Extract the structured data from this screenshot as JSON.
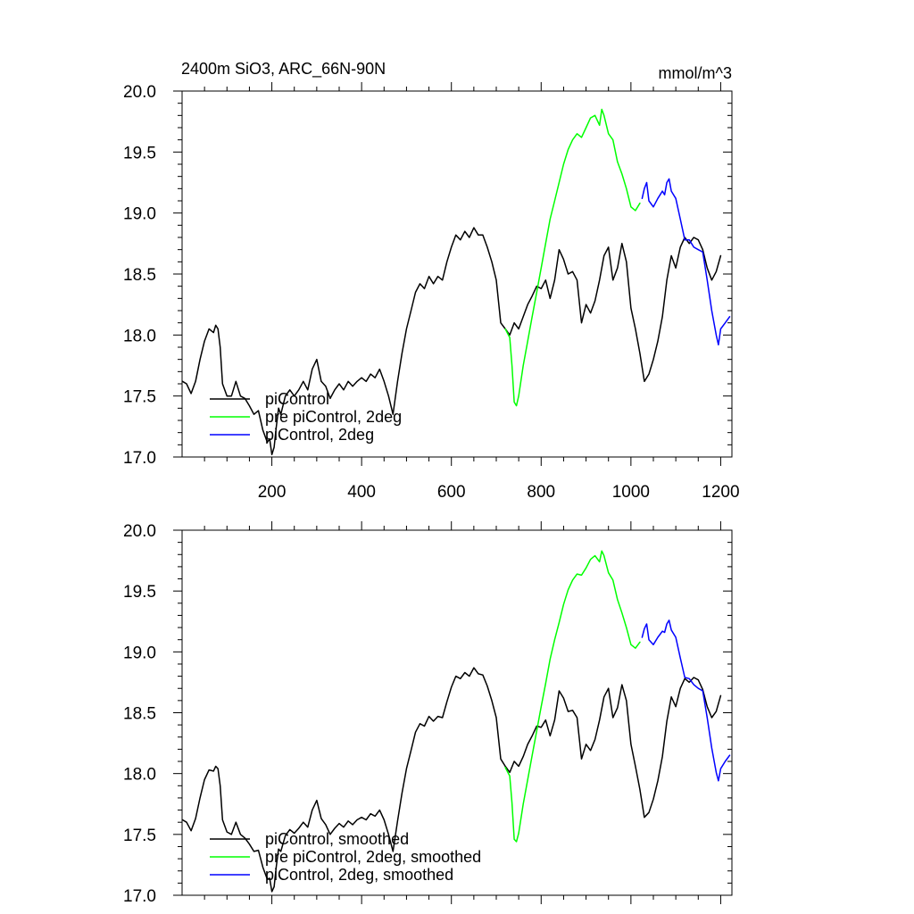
{
  "figure": {
    "title_left": "2400m SiO3, ARC_66N-90N",
    "title_right": "mmol/m^3"
  },
  "chart_data": [
    {
      "type": "line",
      "title": "2400m SiO3, ARC_66N-90N",
      "units": "mmol/m^3",
      "xlim": [
        0,
        1225
      ],
      "ylim": [
        17.0,
        20.0
      ],
      "xticks": [
        200,
        400,
        600,
        800,
        1000,
        1200
      ],
      "xtick_labels": [
        "200",
        "400",
        "600",
        "800",
        "1000",
        "1200"
      ],
      "yticks": [
        17.0,
        17.5,
        18.0,
        18.5,
        19.0,
        19.5,
        20.0
      ],
      "ytick_labels": [
        "17.0",
        "17.5",
        "18.0",
        "18.5",
        "19.0",
        "19.5",
        "20.0"
      ],
      "legend_position": "bottom-left",
      "series": [
        {
          "name": "piControl",
          "color": "#000000",
          "x": [
            1,
            10,
            20,
            30,
            40,
            50,
            60,
            70,
            75,
            80,
            85,
            90,
            100,
            110,
            120,
            130,
            140,
            150,
            160,
            170,
            180,
            190,
            195,
            200,
            205,
            210,
            215,
            220,
            230,
            240,
            250,
            260,
            270,
            280,
            290,
            300,
            310,
            320,
            330,
            340,
            350,
            360,
            370,
            380,
            390,
            400,
            410,
            420,
            430,
            440,
            450,
            460,
            470,
            480,
            490,
            500,
            510,
            520,
            530,
            540,
            550,
            560,
            570,
            580,
            590,
            600,
            610,
            620,
            630,
            640,
            650,
            660,
            670,
            680,
            690,
            700,
            710,
            720,
            730,
            740,
            750,
            760,
            770,
            780,
            790,
            800,
            810,
            820,
            830,
            840,
            850,
            860,
            870,
            880,
            890,
            900,
            910,
            920,
            930,
            940,
            950,
            960,
            970,
            980,
            990,
            1000,
            1010,
            1020,
            1030,
            1040,
            1050,
            1060,
            1070,
            1080,
            1090,
            1100,
            1110,
            1120,
            1130,
            1140,
            1150,
            1160,
            1170,
            1180,
            1190,
            1200
          ],
          "y": [
            17.62,
            17.6,
            17.52,
            17.62,
            17.8,
            17.95,
            18.05,
            18.02,
            18.08,
            18.05,
            17.9,
            17.6,
            17.5,
            17.5,
            17.62,
            17.5,
            17.48,
            17.42,
            17.35,
            17.38,
            17.22,
            17.12,
            17.15,
            17.02,
            17.08,
            17.25,
            17.4,
            17.35,
            17.5,
            17.55,
            17.5,
            17.55,
            17.62,
            17.55,
            17.72,
            17.8,
            17.62,
            17.58,
            17.48,
            17.55,
            17.6,
            17.55,
            17.62,
            17.58,
            17.62,
            17.65,
            17.62,
            17.68,
            17.65,
            17.72,
            17.62,
            17.5,
            17.35,
            17.62,
            17.85,
            18.05,
            18.2,
            18.35,
            18.42,
            18.38,
            18.48,
            18.42,
            18.48,
            18.45,
            18.6,
            18.72,
            18.82,
            18.78,
            18.85,
            18.8,
            18.88,
            18.82,
            18.82,
            18.72,
            18.6,
            18.45,
            18.1,
            18.05,
            18.0,
            18.1,
            18.05,
            18.15,
            18.25,
            18.32,
            18.4,
            18.38,
            18.45,
            18.3,
            18.45,
            18.7,
            18.62,
            18.5,
            18.52,
            18.45,
            18.1,
            18.25,
            18.18,
            18.28,
            18.45,
            18.65,
            18.72,
            18.45,
            18.55,
            18.75,
            18.6,
            18.22,
            18.05,
            17.85,
            17.62,
            17.68,
            17.8,
            17.95,
            18.15,
            18.45,
            18.65,
            18.55,
            18.72,
            18.8,
            18.75,
            18.8,
            18.78,
            18.7,
            18.55,
            18.45,
            18.52,
            18.65
          ]
        },
        {
          "name": "pre piControl, 2deg",
          "color": "#00ff00",
          "x": [
            720,
            730,
            735,
            740,
            745,
            750,
            760,
            770,
            780,
            790,
            800,
            810,
            820,
            830,
            840,
            850,
            860,
            870,
            880,
            890,
            900,
            910,
            920,
            930,
            935,
            940,
            950,
            960,
            970,
            980,
            990,
            1000,
            1010,
            1020
          ],
          "y": [
            18.05,
            17.98,
            17.75,
            17.45,
            17.42,
            17.5,
            17.75,
            17.95,
            18.15,
            18.35,
            18.55,
            18.75,
            18.95,
            19.1,
            19.25,
            19.4,
            19.52,
            19.6,
            19.65,
            19.62,
            19.7,
            19.78,
            19.8,
            19.72,
            19.85,
            19.8,
            19.65,
            19.6,
            19.42,
            19.32,
            19.2,
            19.05,
            19.02,
            19.08
          ]
        },
        {
          "name": "piControl, 2deg",
          "color": "#0000ff",
          "x": [
            1025,
            1030,
            1035,
            1040,
            1050,
            1060,
            1070,
            1075,
            1080,
            1085,
            1090,
            1100,
            1110,
            1120,
            1130,
            1140,
            1150,
            1160,
            1170,
            1180,
            1190,
            1195,
            1200,
            1210,
            1220
          ],
          "y": [
            19.12,
            19.2,
            19.25,
            19.1,
            19.05,
            19.12,
            19.18,
            19.15,
            19.25,
            19.28,
            19.18,
            19.12,
            18.95,
            18.78,
            18.78,
            18.72,
            18.7,
            18.68,
            18.45,
            18.2,
            18.0,
            17.92,
            18.05,
            18.1,
            18.15
          ]
        }
      ]
    },
    {
      "type": "line",
      "xlim": [
        0,
        1225
      ],
      "ylim": [
        17.0,
        20.0
      ],
      "yticks": [
        17.0,
        17.5,
        18.0,
        18.5,
        19.0,
        19.5,
        20.0
      ],
      "ytick_labels": [
        "17.0",
        "17.5",
        "18.0",
        "18.5",
        "19.0",
        "19.5",
        "20.0"
      ],
      "legend_position": "bottom-left",
      "series": [
        {
          "name": "piControl, smoothed",
          "color": "#000000",
          "x": [
            1,
            10,
            20,
            30,
            40,
            50,
            60,
            70,
            75,
            80,
            85,
            90,
            100,
            110,
            120,
            130,
            140,
            150,
            160,
            170,
            180,
            190,
            195,
            200,
            205,
            210,
            215,
            220,
            230,
            240,
            250,
            260,
            270,
            280,
            290,
            300,
            310,
            320,
            330,
            340,
            350,
            360,
            370,
            380,
            390,
            400,
            410,
            420,
            430,
            440,
            450,
            460,
            470,
            480,
            490,
            500,
            510,
            520,
            530,
            540,
            550,
            560,
            570,
            580,
            590,
            600,
            610,
            620,
            630,
            640,
            650,
            660,
            670,
            680,
            690,
            700,
            710,
            720,
            730,
            740,
            750,
            760,
            770,
            780,
            790,
            800,
            810,
            820,
            830,
            840,
            850,
            860,
            870,
            880,
            890,
            900,
            910,
            920,
            930,
            940,
            950,
            960,
            970,
            980,
            990,
            1000,
            1010,
            1020,
            1030,
            1040,
            1050,
            1060,
            1070,
            1080,
            1090,
            1100,
            1110,
            1120,
            1130,
            1140,
            1150,
            1160,
            1170,
            1180,
            1190,
            1200
          ],
          "y": [
            17.62,
            17.6,
            17.53,
            17.63,
            17.8,
            17.95,
            18.03,
            18.02,
            18.06,
            18.04,
            17.9,
            17.62,
            17.52,
            17.5,
            17.6,
            17.5,
            17.47,
            17.42,
            17.36,
            17.37,
            17.23,
            17.13,
            17.14,
            17.03,
            17.07,
            17.24,
            17.38,
            17.36,
            17.49,
            17.54,
            17.51,
            17.55,
            17.6,
            17.56,
            17.7,
            17.78,
            17.63,
            17.58,
            17.5,
            17.55,
            17.59,
            17.56,
            17.61,
            17.58,
            17.62,
            17.64,
            17.62,
            17.67,
            17.65,
            17.7,
            17.62,
            17.5,
            17.36,
            17.61,
            17.84,
            18.04,
            18.19,
            18.34,
            18.41,
            18.39,
            18.47,
            18.43,
            18.47,
            18.46,
            18.59,
            18.71,
            18.8,
            18.78,
            18.83,
            18.8,
            18.87,
            18.82,
            18.81,
            18.72,
            18.6,
            18.46,
            18.12,
            18.06,
            18.01,
            18.1,
            18.06,
            18.14,
            18.24,
            18.31,
            18.39,
            18.38,
            18.44,
            18.31,
            18.44,
            18.68,
            18.62,
            18.51,
            18.52,
            18.46,
            18.12,
            18.24,
            18.19,
            18.28,
            18.44,
            18.63,
            18.7,
            18.46,
            18.54,
            18.73,
            18.6,
            18.24,
            18.06,
            17.87,
            17.64,
            17.68,
            17.79,
            17.94,
            18.14,
            18.43,
            18.63,
            18.55,
            18.7,
            18.78,
            18.75,
            18.79,
            18.77,
            18.69,
            18.55,
            18.46,
            18.51,
            18.64
          ]
        },
        {
          "name": "pre piControl, 2deg, smoothed",
          "color": "#00ff00",
          "x": [
            720,
            730,
            735,
            740,
            745,
            750,
            760,
            770,
            780,
            790,
            800,
            810,
            820,
            830,
            840,
            850,
            860,
            870,
            880,
            890,
            900,
            910,
            920,
            930,
            935,
            940,
            950,
            960,
            970,
            980,
            990,
            1000,
            1010,
            1020
          ],
          "y": [
            18.05,
            17.98,
            17.76,
            17.46,
            17.44,
            17.51,
            17.75,
            17.95,
            18.15,
            18.35,
            18.55,
            18.74,
            18.94,
            19.1,
            19.24,
            19.39,
            19.51,
            19.59,
            19.64,
            19.63,
            19.69,
            19.76,
            19.79,
            19.74,
            19.83,
            19.79,
            19.65,
            19.59,
            19.43,
            19.32,
            19.2,
            19.06,
            19.03,
            19.08
          ]
        },
        {
          "name": "piControl, 2deg, smoothed",
          "color": "#0000ff",
          "x": [
            1025,
            1030,
            1035,
            1040,
            1050,
            1060,
            1070,
            1075,
            1080,
            1085,
            1090,
            1100,
            1110,
            1120,
            1130,
            1140,
            1150,
            1160,
            1170,
            1180,
            1190,
            1195,
            1200,
            1210,
            1220
          ],
          "y": [
            19.12,
            19.19,
            19.23,
            19.1,
            19.06,
            19.12,
            19.17,
            19.16,
            19.23,
            19.26,
            19.18,
            19.12,
            18.95,
            18.79,
            18.78,
            18.73,
            18.7,
            18.68,
            18.46,
            18.21,
            18.01,
            17.94,
            18.04,
            18.1,
            18.15
          ]
        }
      ]
    }
  ]
}
